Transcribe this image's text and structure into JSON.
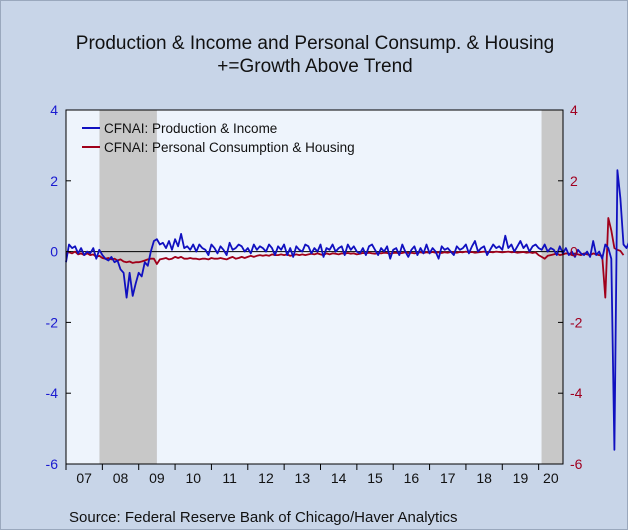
{
  "chart_data": {
    "type": "line",
    "title": "Production & Income and Personal Consump. & Housing",
    "subtitle": "+=Growth Above Trend",
    "source": "Source:  Federal Reserve Bank of Chicago/Haver Analytics",
    "ylim": [
      -6,
      4
    ],
    "y_ticks": [
      -6,
      -4,
      -2,
      0,
      2,
      4
    ],
    "y_tick_labels": [
      "-6",
      "-4",
      "-2",
      "0",
      "2",
      "4"
    ],
    "right_y_tick_labels": [
      "-6",
      "-4",
      "-2",
      "0",
      "2",
      "4"
    ],
    "x_tick_labels": [
      "07",
      "08",
      "09",
      "10",
      "11",
      "12",
      "13",
      "14",
      "15",
      "16",
      "17",
      "18",
      "19",
      "20"
    ],
    "x_start": 2007.0,
    "x_end": 2020.67,
    "zero_line": true,
    "legend_position": "top-left",
    "recessions": [
      [
        2007.92,
        2009.5
      ],
      [
        2020.08,
        2020.67
      ]
    ],
    "colors": {
      "series1": "#1010c0",
      "series2": "#a0001a",
      "recession": "#c8c8c8",
      "plot_bg": "#eef4fc",
      "left_axis": "#1a1ad0",
      "right_axis": "#a00020"
    },
    "series": [
      {
        "name": "CFNAI: Production & Income",
        "start": 2007.0,
        "step": 0.08333,
        "values": [
          -0.3,
          0.2,
          0.1,
          0.15,
          -0.05,
          0.1,
          -0.1,
          0.0,
          -0.05,
          0.1,
          -0.2,
          0.05,
          -0.1,
          -0.2,
          -0.25,
          -0.15,
          -0.3,
          -0.25,
          -0.5,
          -0.6,
          -1.3,
          -0.6,
          -1.25,
          -0.9,
          -0.6,
          -0.7,
          -0.3,
          -0.4,
          0.0,
          0.3,
          0.35,
          0.2,
          0.25,
          0.1,
          0.3,
          0.05,
          0.35,
          0.15,
          0.5,
          0.1,
          0.15,
          0.05,
          0.2,
          0.0,
          0.2,
          0.1,
          0.05,
          -0.1,
          0.2,
          0.1,
          -0.05,
          0.15,
          0.05,
          -0.1,
          0.25,
          0.05,
          0.1,
          0.2,
          0.15,
          0.0,
          0.1,
          -0.05,
          0.2,
          0.05,
          0.15,
          0.1,
          0.0,
          0.2,
          0.1,
          -0.1,
          0.15,
          0.05,
          0.2,
          -0.1,
          0.1,
          -0.15,
          0.15,
          0.05,
          0.0,
          0.2,
          0.15,
          -0.05,
          0.1,
          0.0,
          0.2,
          -0.15,
          0.1,
          0.05,
          0.2,
          0.0,
          0.1,
          0.15,
          -0.1,
          0.2,
          0.05,
          0.15,
          0.0,
          -0.05,
          0.1,
          -0.1,
          0.15,
          0.2,
          0.05,
          -0.1,
          0.1,
          0.0,
          0.15,
          -0.2,
          0.05,
          0.1,
          -0.1,
          0.2,
          0.0,
          -0.15,
          0.05,
          0.15,
          -0.1,
          0.1,
          -0.05,
          0.2,
          -0.05,
          0.1,
          0.0,
          -0.2,
          0.15,
          0.05,
          0.1,
          0.0,
          -0.1,
          0.15,
          0.05,
          0.1,
          0.2,
          -0.05,
          0.15,
          0.3,
          0.0,
          0.1,
          0.15,
          -0.1,
          0.05,
          0.2,
          0.1,
          0.15,
          0.05,
          0.45,
          0.1,
          0.2,
          0.0,
          0.15,
          0.3,
          0.1,
          0.2,
          0.0,
          0.15,
          0.2,
          0.1,
          0.05,
          0.2,
          0.0,
          0.1,
          0.05,
          -0.1,
          0.15,
          -0.05,
          0.1,
          -0.1,
          0.0,
          -0.15,
          0.05,
          -0.05,
          -0.1,
          0.0,
          -0.15,
          0.3,
          -0.1,
          0.0,
          -0.2,
          0.2,
          0.1,
          -0.2,
          -5.6,
          2.3,
          1.5,
          0.2,
          0.1,
          0.3,
          0.15
        ]
      },
      {
        "name": "CFNAI: Personal Consumption & Housing",
        "start": 2007.0,
        "step": 0.08333,
        "values": [
          -0.05,
          -0.02,
          -0.05,
          0.0,
          -0.08,
          -0.05,
          -0.1,
          -0.05,
          -0.1,
          -0.08,
          -0.15,
          -0.12,
          -0.18,
          -0.2,
          -0.18,
          -0.22,
          -0.2,
          -0.25,
          -0.22,
          -0.28,
          -0.3,
          -0.28,
          -0.32,
          -0.3,
          -0.3,
          -0.28,
          -0.25,
          -0.22,
          -0.2,
          -0.2,
          -0.35,
          -0.22,
          -0.2,
          -0.18,
          -0.22,
          -0.2,
          -0.15,
          -0.18,
          -0.15,
          -0.2,
          -0.2,
          -0.18,
          -0.2,
          -0.2,
          -0.22,
          -0.2,
          -0.2,
          -0.22,
          -0.18,
          -0.2,
          -0.2,
          -0.18,
          -0.2,
          -0.22,
          -0.18,
          -0.15,
          -0.2,
          -0.18,
          -0.15,
          -0.18,
          -0.15,
          -0.12,
          -0.15,
          -0.12,
          -0.1,
          -0.12,
          -0.1,
          -0.12,
          -0.08,
          -0.1,
          -0.1,
          -0.08,
          -0.1,
          -0.08,
          -0.12,
          -0.1,
          -0.08,
          -0.1,
          -0.08,
          -0.1,
          -0.08,
          -0.06,
          -0.08,
          -0.05,
          -0.08,
          -0.1,
          -0.05,
          -0.08,
          -0.05,
          -0.06,
          -0.08,
          -0.05,
          -0.06,
          -0.04,
          -0.06,
          -0.05,
          -0.08,
          -0.06,
          -0.04,
          -0.05,
          -0.03,
          -0.05,
          -0.06,
          -0.04,
          -0.05,
          -0.03,
          -0.04,
          -0.06,
          -0.04,
          -0.03,
          -0.05,
          -0.04,
          -0.02,
          -0.04,
          -0.03,
          -0.05,
          -0.03,
          -0.02,
          -0.04,
          -0.02,
          -0.03,
          -0.01,
          -0.03,
          -0.02,
          -0.04,
          -0.02,
          -0.03,
          -0.01,
          -0.02,
          -0.03,
          -0.01,
          -0.02,
          0.0,
          -0.02,
          -0.01,
          -0.03,
          -0.02,
          -0.01,
          0.0,
          -0.02,
          -0.01,
          -0.02,
          0.0,
          -0.01,
          -0.02,
          -0.01,
          0.0,
          -0.02,
          -0.01,
          -0.03,
          -0.02,
          -0.01,
          -0.03,
          -0.02,
          -0.04,
          -0.02,
          -0.1,
          -0.15,
          -0.2,
          -0.12,
          -0.1,
          -0.08,
          -0.05,
          -0.1,
          -0.08,
          -0.05,
          -0.06,
          -0.1,
          -0.05,
          -0.08,
          -0.1,
          -0.05,
          -0.08,
          -0.1,
          -0.05,
          -0.08,
          -0.1,
          -0.12,
          -1.3,
          0.95,
          0.6,
          0.1,
          0.05,
          0.02,
          -0.1
        ]
      }
    ]
  }
}
